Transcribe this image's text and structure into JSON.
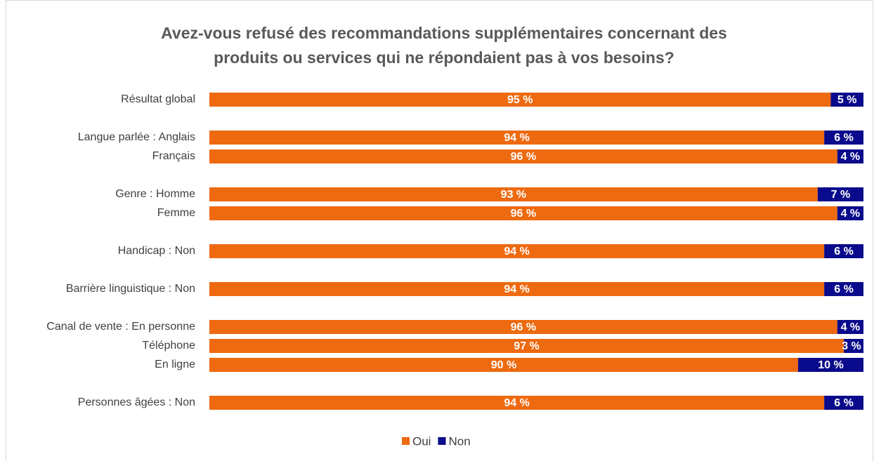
{
  "chart_data": {
    "type": "stacked_bar_horizontal",
    "title": [
      "Avez-vous refusé des recommandations supplémentaires concernant des",
      "produits ou services qui ne répondaient pas à vos besoins?"
    ],
    "categories": [
      "Résultat global",
      null,
      "Langue parlée : Anglais",
      "Français",
      null,
      "Genre : Homme",
      "Femme",
      null,
      "Handicap : Non",
      null,
      "Barrière linguistique : Non",
      null,
      "Canal de vente : En personne",
      "Téléphone",
      "En ligne",
      null,
      "Personnes âgées : Non"
    ],
    "xlim": [
      0,
      100
    ],
    "legend": "bottom",
    "series": [
      {
        "name": "Oui",
        "color": "#ee6a10",
        "values": [
          95,
          null,
          94,
          96,
          null,
          93,
          96,
          null,
          94,
          null,
          94,
          null,
          96,
          97,
          90,
          null,
          94
        ],
        "value_labels": [
          "95 %",
          null,
          "94 %",
          "96 %",
          null,
          "93 %",
          "96 %",
          null,
          "94 %",
          null,
          "94 %",
          null,
          "96 %",
          "97 %",
          "90 %",
          null,
          "94 %"
        ]
      },
      {
        "name": "Non",
        "color": "#0a0a8c",
        "values": [
          5,
          null,
          6,
          4,
          null,
          7,
          4,
          null,
          6,
          null,
          6,
          null,
          4,
          3,
          10,
          null,
          6
        ],
        "value_labels": [
          "5 %",
          null,
          "6 %",
          "4 %",
          null,
          "7 %",
          "4 %",
          null,
          "6 %",
          null,
          "6 %",
          null,
          "4 %",
          "3 %",
          "10 %",
          null,
          "6 %"
        ]
      }
    ]
  }
}
